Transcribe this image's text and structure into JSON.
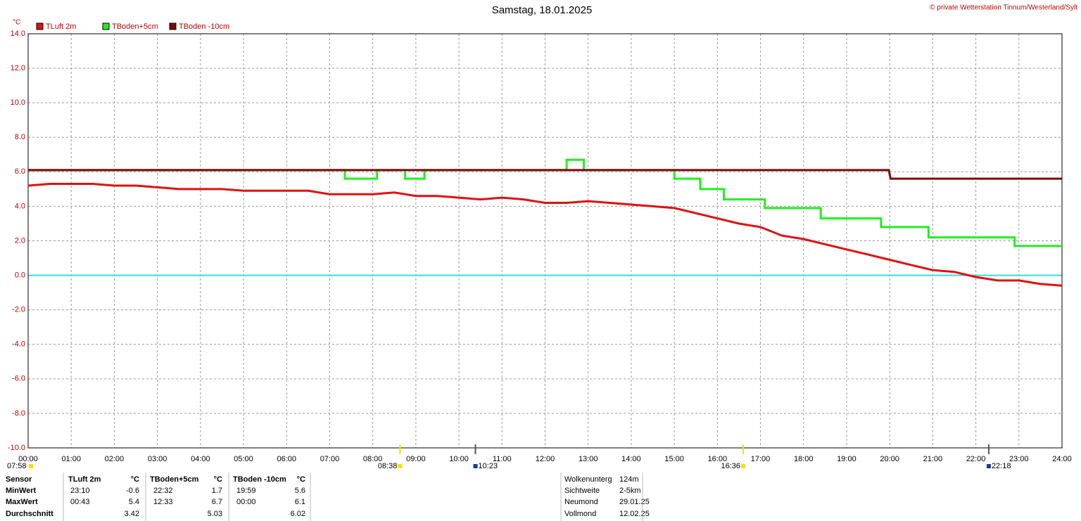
{
  "chart_data": {
    "type": "line",
    "title": "Samstag, 18.01.2025",
    "credit": "© private Wetterstation Tinnum/Westerland/Sylt",
    "ylabel": "°C",
    "xlim": [
      0,
      24
    ],
    "xticks": [
      {
        "value": 0,
        "label": "00:00"
      },
      {
        "value": 1,
        "label": "01:00"
      },
      {
        "value": 2,
        "label": "02:00"
      },
      {
        "value": 3,
        "label": "03:00"
      },
      {
        "value": 4,
        "label": "04:00"
      },
      {
        "value": 5,
        "label": "05:00"
      },
      {
        "value": 6,
        "label": "06:00"
      },
      {
        "value": 7,
        "label": "07:00"
      },
      {
        "value": 8,
        "label": "08:00"
      },
      {
        "value": 9,
        "label": "09:00"
      },
      {
        "value": 10,
        "label": "10:00"
      },
      {
        "value": 11,
        "label": "11:00"
      },
      {
        "value": 12,
        "label": "12:00"
      },
      {
        "value": 13,
        "label": "13:00"
      },
      {
        "value": 14,
        "label": "14:00"
      },
      {
        "value": 15,
        "label": "15:00"
      },
      {
        "value": 16,
        "label": "16:00"
      },
      {
        "value": 17,
        "label": "17:00"
      },
      {
        "value": 18,
        "label": "18:00"
      },
      {
        "value": 19,
        "label": "19:00"
      },
      {
        "value": 20,
        "label": "20:00"
      },
      {
        "value": 21,
        "label": "21:00"
      },
      {
        "value": 22,
        "label": "22:00"
      },
      {
        "value": 23,
        "label": "23:00"
      },
      {
        "value": 24,
        "label": "24:00"
      }
    ],
    "ylim": [
      -10,
      14
    ],
    "yticks": [
      {
        "value": 14,
        "label": "14.0"
      },
      {
        "value": 12,
        "label": "12.0"
      },
      {
        "value": 10,
        "label": "10.0"
      },
      {
        "value": 8,
        "label": "8.0"
      },
      {
        "value": 6,
        "label": "6.0"
      },
      {
        "value": 4,
        "label": "4.0"
      },
      {
        "value": 2,
        "label": "2.0"
      },
      {
        "value": 0,
        "label": "0.0"
      },
      {
        "value": -2,
        "label": "-2.0"
      },
      {
        "value": -4,
        "label": "-4.0"
      },
      {
        "value": -6,
        "label": "-6.0"
      },
      {
        "value": -8,
        "label": "-8.0"
      },
      {
        "value": -10,
        "label": "-10.0"
      }
    ],
    "grid": true,
    "zero_line_color": "#33dddd",
    "series": [
      {
        "name": "TLuft 2m",
        "color": "#e01010",
        "x": [
          0,
          0.5,
          1,
          1.5,
          2,
          2.5,
          3,
          3.5,
          4,
          4.5,
          5,
          5.5,
          6,
          6.5,
          7,
          7.5,
          8,
          8.5,
          9,
          9.5,
          10,
          10.5,
          11,
          11.5,
          12,
          12.5,
          13,
          13.5,
          14,
          14.5,
          15,
          15.5,
          16,
          16.5,
          17,
          17.5,
          18,
          18.5,
          19,
          19.5,
          20,
          20.5,
          21,
          21.5,
          22,
          22.5,
          23,
          23.5,
          24
        ],
        "values": [
          5.2,
          5.3,
          5.3,
          5.3,
          5.2,
          5.2,
          5.1,
          5.0,
          5.0,
          5.0,
          4.9,
          4.9,
          4.9,
          4.9,
          4.7,
          4.7,
          4.7,
          4.8,
          4.6,
          4.6,
          4.5,
          4.4,
          4.5,
          4.4,
          4.2,
          4.2,
          4.3,
          4.2,
          4.1,
          4.0,
          3.9,
          3.6,
          3.3,
          3.0,
          2.8,
          2.3,
          2.1,
          1.8,
          1.5,
          1.2,
          0.9,
          0.6,
          0.3,
          0.2,
          -0.1,
          -0.3,
          -0.3,
          -0.5,
          -0.6
        ]
      },
      {
        "name": "TBoden+5cm",
        "color": "#22ee22",
        "x": [
          0,
          7.35,
          7.35,
          8.1,
          8.1,
          8.75,
          8.75,
          9.2,
          9.2,
          12.5,
          12.5,
          12.9,
          12.9,
          15,
          15,
          15.6,
          15.6,
          16.15,
          16.15,
          17.1,
          17.1,
          18.4,
          18.4,
          19.8,
          19.8,
          20.9,
          20.9,
          22.9,
          22.9,
          24
        ],
        "values": [
          6.1,
          6.1,
          5.6,
          5.6,
          6.1,
          6.1,
          5.6,
          5.6,
          6.1,
          6.1,
          6.7,
          6.7,
          6.1,
          6.1,
          5.6,
          5.6,
          5.0,
          5.0,
          4.4,
          4.4,
          3.9,
          3.9,
          3.3,
          3.3,
          2.8,
          2.8,
          2.2,
          2.2,
          1.7,
          1.7
        ]
      },
      {
        "name": "TBoden -10cm",
        "color": "#7a0a0a",
        "x": [
          0,
          19.98,
          20.02,
          24
        ],
        "values": [
          6.1,
          6.1,
          5.6,
          5.6
        ]
      }
    ],
    "markers": [
      {
        "label": "07:58"
      },
      {
        "label": "08:38",
        "color": "#ffdd00"
      },
      {
        "label": "10:23",
        "color": "#555555"
      },
      {
        "label": "16:36",
        "color": "#ffdd00"
      },
      {
        "label": "22:18",
        "color": "#555555"
      }
    ],
    "stats": {
      "header": [
        "Sensor",
        "TLuft 2m",
        "°C",
        "TBoden+5cm",
        "°C",
        "TBoden -10cm",
        "°C"
      ],
      "rows": [
        {
          "label": "MinWert",
          "cells": [
            [
              "23:10",
              "-0.6"
            ],
            [
              "22:32",
              "1.7"
            ],
            [
              "19:59",
              "5.6"
            ]
          ]
        },
        {
          "label": "MaxWert",
          "cells": [
            [
              "00:43",
              "5.4"
            ],
            [
              "12:33",
              "6.7"
            ],
            [
              "00:00",
              "6.1"
            ]
          ]
        },
        {
          "label": "Durchschnitt",
          "cells": [
            [
              "3.42"
            ],
            [
              "5.03"
            ],
            [
              "6.02"
            ]
          ]
        }
      ]
    },
    "info": [
      [
        "Wolkenunterg",
        "124m"
      ],
      [
        "Sichtweite",
        "2-5km"
      ],
      [
        "Neumond",
        "29.01.25"
      ],
      [
        "Vollmond",
        "12.02.25"
      ]
    ]
  }
}
